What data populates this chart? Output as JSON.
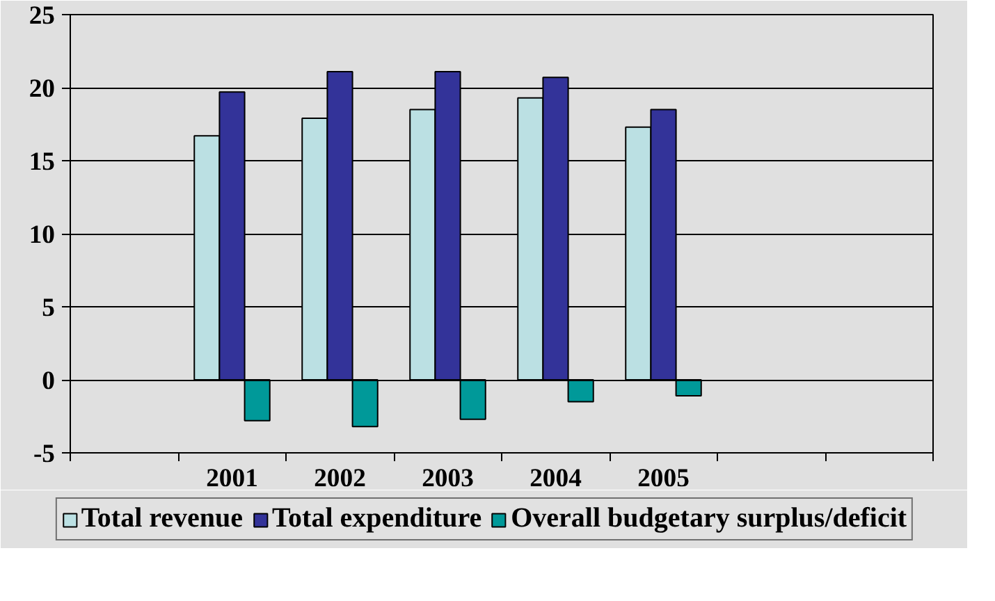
{
  "chart_data": {
    "type": "bar",
    "categories": [
      null,
      "2001",
      "2002",
      "2003",
      "2004",
      "2005",
      null,
      null
    ],
    "series": [
      {
        "name": "Total revenue",
        "color": "#bbe0e3",
        "values": [
          null,
          16.7,
          17.9,
          18.5,
          19.3,
          17.3,
          null,
          null
        ]
      },
      {
        "name": "Total expenditure",
        "color": "#333399",
        "values": [
          null,
          19.7,
          21.1,
          21.1,
          20.7,
          18.5,
          null,
          null
        ]
      },
      {
        "name": "Overall budgetary surplus/deficit",
        "color": "#009999",
        "values": [
          null,
          -2.8,
          -3.2,
          -2.7,
          -1.5,
          -1.1,
          null,
          null
        ]
      }
    ],
    "ylim": [
      -5,
      25
    ],
    "yticks": [
      -5,
      0,
      5,
      10,
      15,
      20,
      25
    ],
    "grid": "y",
    "legend": "bottom"
  }
}
